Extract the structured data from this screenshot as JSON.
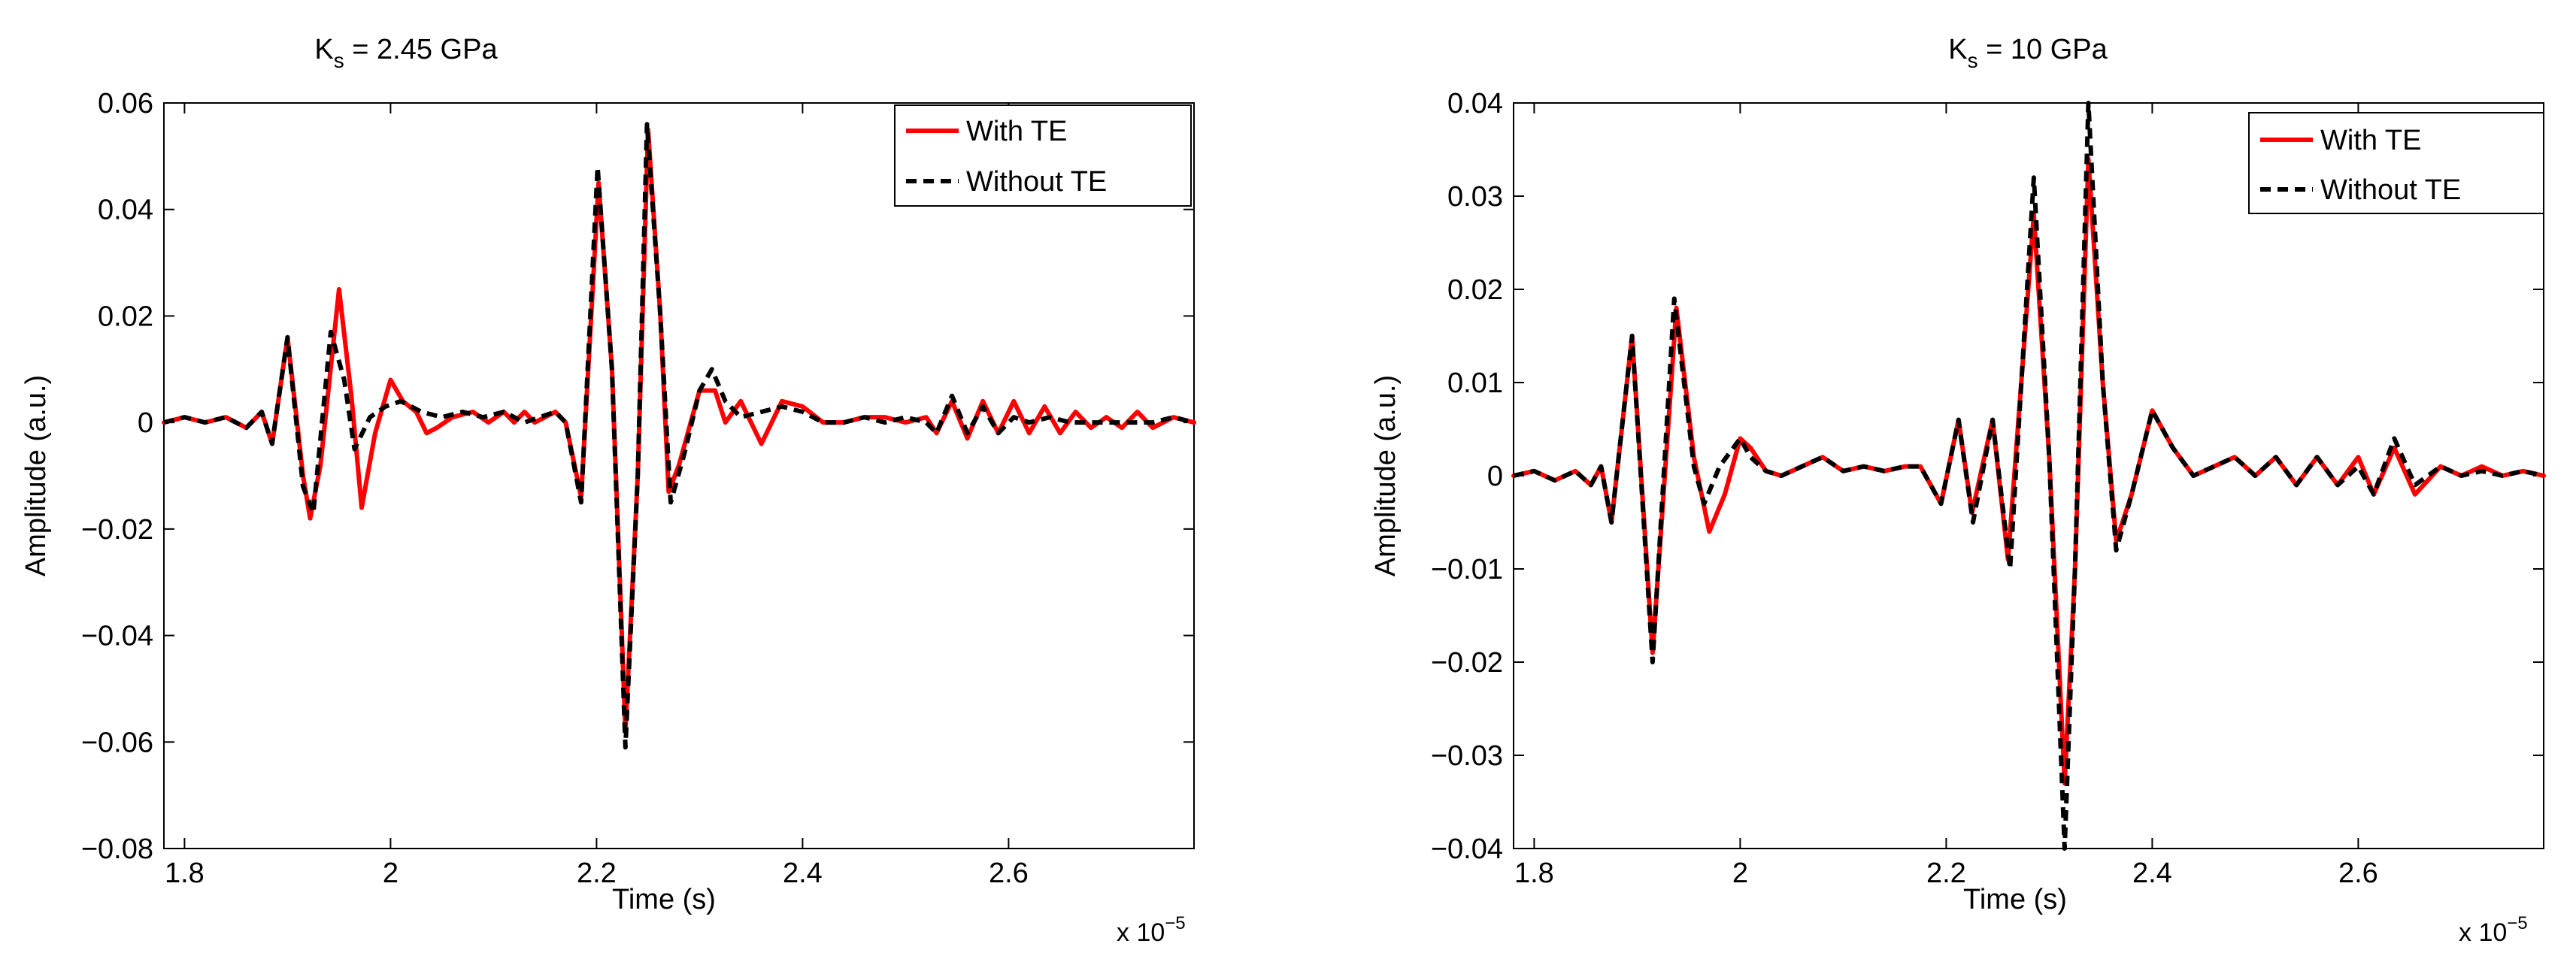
{
  "chart_data": [
    {
      "type": "line",
      "title": "K_s = 2.45 GPa",
      "title_main": "K",
      "title_sub": "s",
      "title_rest": " = 2.45 GPa",
      "xlabel": "Time (s)",
      "ylabel": "Amplitude (a.u.)",
      "x_multiplier": "x 10",
      "x_multiplier_exp": "−5",
      "xlim": [
        1.78,
        2.78
      ],
      "ylim": [
        -0.08,
        0.06
      ],
      "xticks": [
        1.8,
        2,
        2.2,
        2.4,
        2.6
      ],
      "xtick_labels": [
        "1.8",
        "2",
        "2.2",
        "2.4",
        "2.6"
      ],
      "yticks": [
        -0.08,
        -0.06,
        -0.04,
        -0.02,
        0,
        0.02,
        0.04,
        0.06
      ],
      "ytick_labels": [
        "−0.08",
        "−0.06",
        "−0.04",
        "−0.02",
        "0",
        "0.02",
        "0.04",
        "0.06"
      ],
      "grid": false,
      "legend_position": "top-right",
      "series": [
        {
          "name": "With TE",
          "color": "#ff0000",
          "style": "solid",
          "points": [
            [
              1.78,
              0
            ],
            [
              1.8,
              0.001
            ],
            [
              1.82,
              0
            ],
            [
              1.84,
              0.001
            ],
            [
              1.86,
              -0.001
            ],
            [
              1.875,
              0.002
            ],
            [
              1.885,
              -0.004
            ],
            [
              1.9,
              0.016
            ],
            [
              1.915,
              -0.01
            ],
            [
              1.922,
              -0.018
            ],
            [
              1.932,
              -0.008
            ],
            [
              1.95,
              0.025
            ],
            [
              1.962,
              0.005
            ],
            [
              1.972,
              -0.016
            ],
            [
              1.985,
              -0.002
            ],
            [
              2.0,
              0.008
            ],
            [
              2.012,
              0.004
            ],
            [
              2.025,
              0.002
            ],
            [
              2.035,
              -0.002
            ],
            [
              2.045,
              -0.001
            ],
            [
              2.06,
              0.001
            ],
            [
              2.08,
              0.002
            ],
            [
              2.095,
              0
            ],
            [
              2.11,
              0.002
            ],
            [
              2.12,
              0
            ],
            [
              2.13,
              0.002
            ],
            [
              2.14,
              0
            ],
            [
              2.16,
              0.002
            ],
            [
              2.17,
              0
            ],
            [
              2.185,
              -0.014
            ],
            [
              2.202,
              0.045
            ],
            [
              2.215,
              0.01
            ],
            [
              2.228,
              -0.058
            ],
            [
              2.24,
              -0.01
            ],
            [
              2.25,
              0.055
            ],
            [
              2.262,
              0.02
            ],
            [
              2.27,
              -0.013
            ],
            [
              2.28,
              -0.008
            ],
            [
              2.3,
              0.006
            ],
            [
              2.315,
              0.006
            ],
            [
              2.325,
              0
            ],
            [
              2.34,
              0.004
            ],
            [
              2.36,
              -0.004
            ],
            [
              2.38,
              0.004
            ],
            [
              2.4,
              0.003
            ],
            [
              2.42,
              0
            ],
            [
              2.44,
              0
            ],
            [
              2.46,
              0.001
            ],
            [
              2.48,
              0.001
            ],
            [
              2.5,
              0
            ],
            [
              2.52,
              0.001
            ],
            [
              2.53,
              -0.002
            ],
            [
              2.545,
              0.004
            ],
            [
              2.56,
              -0.003
            ],
            [
              2.575,
              0.004
            ],
            [
              2.59,
              -0.002
            ],
            [
              2.605,
              0.004
            ],
            [
              2.62,
              -0.002
            ],
            [
              2.635,
              0.003
            ],
            [
              2.65,
              -0.002
            ],
            [
              2.665,
              0.002
            ],
            [
              2.68,
              -0.001
            ],
            [
              2.695,
              0.001
            ],
            [
              2.71,
              -0.001
            ],
            [
              2.725,
              0.002
            ],
            [
              2.74,
              -0.001
            ],
            [
              2.76,
              0.001
            ],
            [
              2.78,
              0
            ]
          ]
        },
        {
          "name": "Without TE",
          "color": "#000000",
          "style": "dashed",
          "points": [
            [
              1.78,
              0
            ],
            [
              1.8,
              0.001
            ],
            [
              1.82,
              0
            ],
            [
              1.84,
              0.001
            ],
            [
              1.86,
              -0.001
            ],
            [
              1.875,
              0.002
            ],
            [
              1.885,
              -0.004
            ],
            [
              1.9,
              0.016
            ],
            [
              1.915,
              -0.012
            ],
            [
              1.925,
              -0.017
            ],
            [
              1.942,
              0.017
            ],
            [
              1.955,
              0.008
            ],
            [
              1.965,
              -0.005
            ],
            [
              1.98,
              0.001
            ],
            [
              1.995,
              0.003
            ],
            [
              2.01,
              0.004
            ],
            [
              2.03,
              0.002
            ],
            [
              2.05,
              0.001
            ],
            [
              2.07,
              0.002
            ],
            [
              2.09,
              0.001
            ],
            [
              2.11,
              0.002
            ],
            [
              2.13,
              0
            ],
            [
              2.16,
              0.002
            ],
            [
              2.17,
              0
            ],
            [
              2.185,
              -0.015
            ],
            [
              2.201,
              0.048
            ],
            [
              2.215,
              0.01
            ],
            [
              2.228,
              -0.061
            ],
            [
              2.24,
              -0.01
            ],
            [
              2.249,
              0.056
            ],
            [
              2.262,
              0.02
            ],
            [
              2.272,
              -0.015
            ],
            [
              2.285,
              -0.006
            ],
            [
              2.3,
              0.006
            ],
            [
              2.312,
              0.01
            ],
            [
              2.325,
              0.004
            ],
            [
              2.34,
              0.001
            ],
            [
              2.36,
              0.002
            ],
            [
              2.38,
              0.003
            ],
            [
              2.4,
              0.002
            ],
            [
              2.42,
              0
            ],
            [
              2.44,
              0
            ],
            [
              2.46,
              0.001
            ],
            [
              2.48,
              0
            ],
            [
              2.5,
              0.001
            ],
            [
              2.52,
              0
            ],
            [
              2.53,
              -0.002
            ],
            [
              2.545,
              0.005
            ],
            [
              2.56,
              -0.002
            ],
            [
              2.575,
              0.003
            ],
            [
              2.59,
              -0.002
            ],
            [
              2.605,
              0.001
            ],
            [
              2.62,
              0
            ],
            [
              2.64,
              0.001
            ],
            [
              2.66,
              0
            ],
            [
              2.68,
              0
            ],
            [
              2.7,
              0
            ],
            [
              2.72,
              0
            ],
            [
              2.74,
              0
            ],
            [
              2.76,
              0.001
            ],
            [
              2.78,
              0
            ]
          ]
        }
      ]
    },
    {
      "type": "line",
      "title": "K_s = 10 GPa",
      "title_main": "K",
      "title_sub": "s",
      "title_rest": " = 10 GPa",
      "xlabel": "Time (s)",
      "ylabel": "Amplitude (a.u.)",
      "x_multiplier": "x 10",
      "x_multiplier_exp": "−5",
      "xlim": [
        1.78,
        2.78
      ],
      "ylim": [
        -0.04,
        0.04
      ],
      "xticks": [
        1.8,
        2,
        2.2,
        2.4,
        2.6
      ],
      "xtick_labels": [
        "1.8",
        "2",
        "2.2",
        "2.4",
        "2.6"
      ],
      "yticks": [
        -0.04,
        -0.03,
        -0.02,
        -0.01,
        0,
        0.01,
        0.02,
        0.03,
        0.04
      ],
      "ytick_labels": [
        "−0.04",
        "−0.03",
        "−0.02",
        "−0.01",
        "0",
        "0.01",
        "0.02",
        "0.03",
        "0.04"
      ],
      "grid": false,
      "legend_position": "top-right",
      "series": [
        {
          "name": "With TE",
          "color": "#ff0000",
          "style": "solid",
          "points": [
            [
              1.78,
              0
            ],
            [
              1.8,
              0.0005
            ],
            [
              1.82,
              -0.0005
            ],
            [
              1.84,
              0.0005
            ],
            [
              1.855,
              -0.001
            ],
            [
              1.865,
              0.001
            ],
            [
              1.875,
              -0.005
            ],
            [
              1.895,
              0.015
            ],
            [
              1.915,
              -0.019
            ],
            [
              1.938,
              0.018
            ],
            [
              1.955,
              0.002
            ],
            [
              1.97,
              -0.006
            ],
            [
              1.985,
              -0.002
            ],
            [
              2.0,
              0.004
            ],
            [
              2.01,
              0.003
            ],
            [
              2.025,
              0.0005
            ],
            [
              2.04,
              0
            ],
            [
              2.06,
              0.001
            ],
            [
              2.08,
              0.002
            ],
            [
              2.1,
              0.0005
            ],
            [
              2.12,
              0.001
            ],
            [
              2.14,
              0.0005
            ],
            [
              2.16,
              0.001
            ],
            [
              2.175,
              0.001
            ],
            [
              2.195,
              -0.003
            ],
            [
              2.212,
              0.006
            ],
            [
              2.225,
              -0.004
            ],
            [
              2.245,
              0.006
            ],
            [
              2.26,
              -0.009
            ],
            [
              2.285,
              0.028
            ],
            [
              2.3,
              0.002
            ],
            [
              2.315,
              -0.033
            ],
            [
              2.325,
              -0.01
            ],
            [
              2.338,
              0.034
            ],
            [
              2.352,
              0.01
            ],
            [
              2.365,
              -0.007
            ],
            [
              2.38,
              -0.002
            ],
            [
              2.4,
              0.007
            ],
            [
              2.42,
              0.003
            ],
            [
              2.44,
              0
            ],
            [
              2.46,
              0.001
            ],
            [
              2.48,
              0.002
            ],
            [
              2.5,
              0
            ],
            [
              2.52,
              0.002
            ],
            [
              2.54,
              -0.001
            ],
            [
              2.56,
              0.002
            ],
            [
              2.58,
              -0.001
            ],
            [
              2.6,
              0.002
            ],
            [
              2.615,
              -0.002
            ],
            [
              2.635,
              0.003
            ],
            [
              2.655,
              -0.002
            ],
            [
              2.68,
              0.001
            ],
            [
              2.7,
              0
            ],
            [
              2.72,
              0.001
            ],
            [
              2.74,
              0
            ],
            [
              2.76,
              0.0005
            ],
            [
              2.78,
              0
            ]
          ]
        },
        {
          "name": "Without TE",
          "color": "#000000",
          "style": "dashed",
          "points": [
            [
              1.78,
              0
            ],
            [
              1.8,
              0.0005
            ],
            [
              1.82,
              -0.0005
            ],
            [
              1.84,
              0.0005
            ],
            [
              1.855,
              -0.001
            ],
            [
              1.865,
              0.001
            ],
            [
              1.875,
              -0.005
            ],
            [
              1.895,
              0.015
            ],
            [
              1.915,
              -0.02
            ],
            [
              1.936,
              0.019
            ],
            [
              1.955,
              0.001
            ],
            [
              1.965,
              -0.003
            ],
            [
              1.98,
              0.001
            ],
            [
              2.0,
              0.004
            ],
            [
              2.01,
              0.002
            ],
            [
              2.025,
              0.0005
            ],
            [
              2.04,
              0
            ],
            [
              2.06,
              0.001
            ],
            [
              2.08,
              0.002
            ],
            [
              2.1,
              0.0005
            ],
            [
              2.12,
              0.001
            ],
            [
              2.14,
              0.0005
            ],
            [
              2.16,
              0.001
            ],
            [
              2.175,
              0.001
            ],
            [
              2.195,
              -0.003
            ],
            [
              2.212,
              0.006
            ],
            [
              2.226,
              -0.005
            ],
            [
              2.245,
              0.006
            ],
            [
              2.262,
              -0.01
            ],
            [
              2.285,
              0.032
            ],
            [
              2.3,
              0.002
            ],
            [
              2.315,
              -0.04
            ],
            [
              2.325,
              -0.01
            ],
            [
              2.338,
              0.04
            ],
            [
              2.352,
              0.01
            ],
            [
              2.365,
              -0.008
            ],
            [
              2.38,
              -0.002
            ],
            [
              2.4,
              0.007
            ],
            [
              2.42,
              0.003
            ],
            [
              2.44,
              0
            ],
            [
              2.46,
              0.001
            ],
            [
              2.48,
              0.002
            ],
            [
              2.5,
              0
            ],
            [
              2.52,
              0.002
            ],
            [
              2.54,
              -0.001
            ],
            [
              2.56,
              0.002
            ],
            [
              2.58,
              -0.001
            ],
            [
              2.6,
              0.001
            ],
            [
              2.615,
              -0.002
            ],
            [
              2.635,
              0.004
            ],
            [
              2.655,
              -0.001
            ],
            [
              2.68,
              0.001
            ],
            [
              2.7,
              0
            ],
            [
              2.72,
              0.0005
            ],
            [
              2.74,
              0
            ],
            [
              2.76,
              0.0005
            ],
            [
              2.78,
              0
            ]
          ]
        }
      ]
    }
  ]
}
